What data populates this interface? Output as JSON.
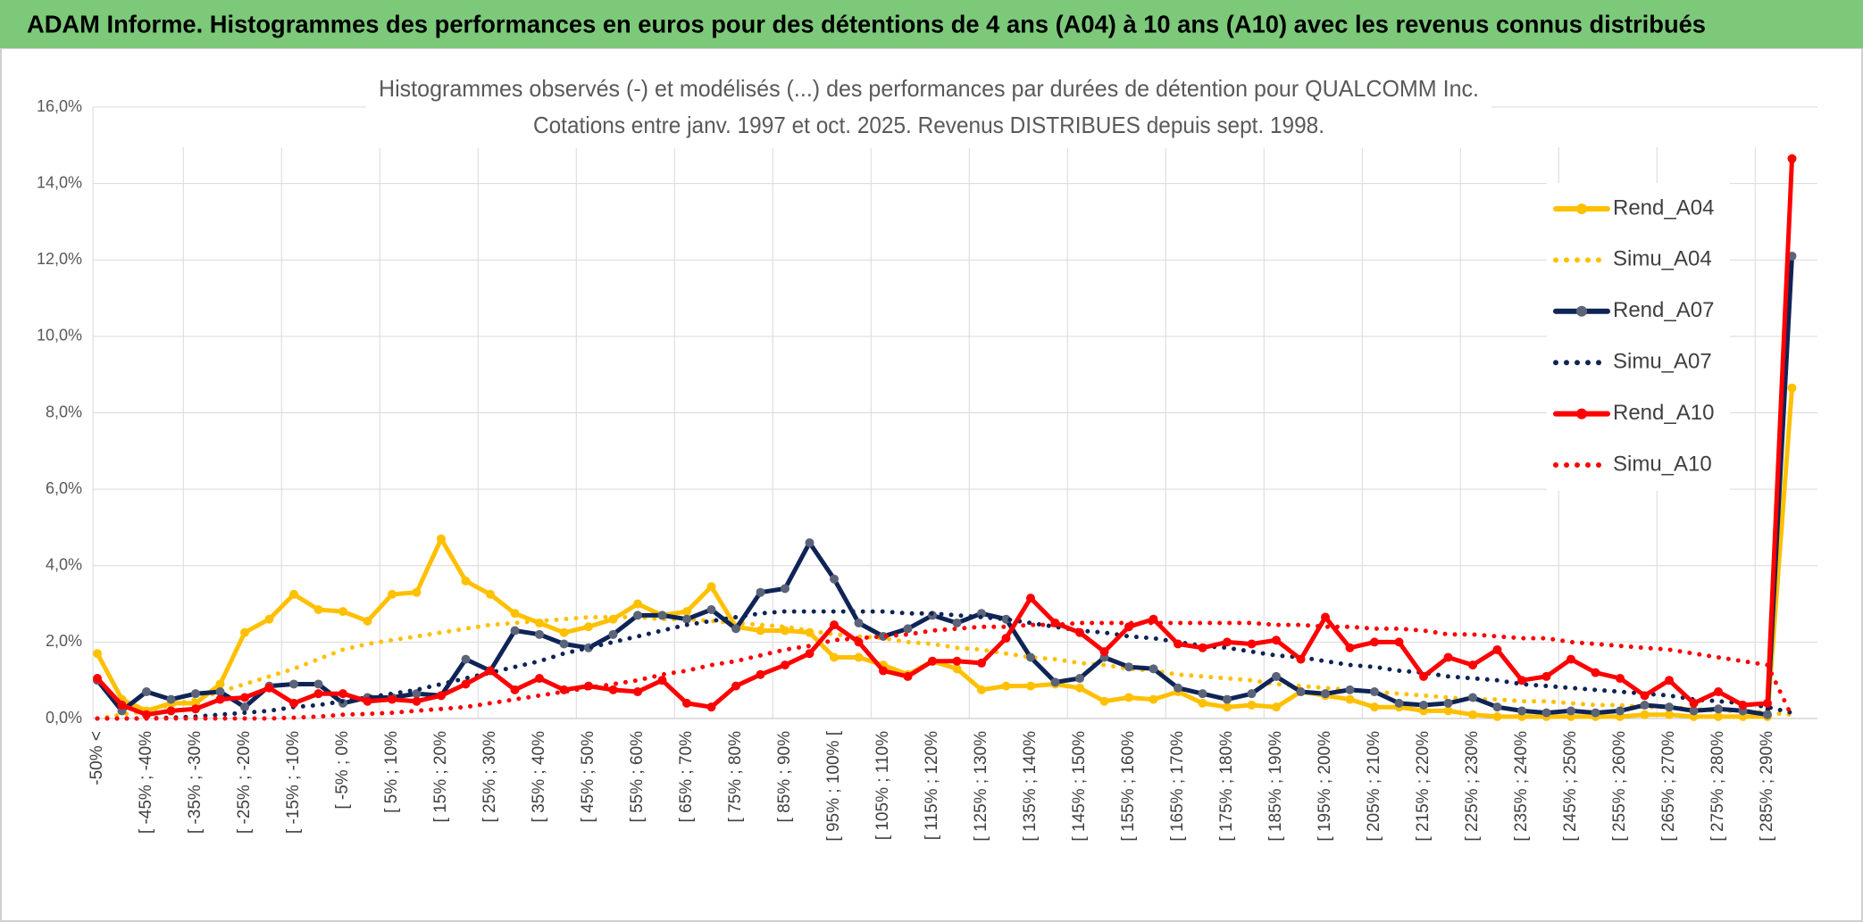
{
  "header": {
    "title": "ADAM Informe. Histogrammes des performances en euros pour des détentions de 4 ans (A04) à 10 ans (A10) avec les revenus connus distribués"
  },
  "chart_data": {
    "type": "line",
    "title": "Histogrammes observés (-) et modélisés (...) des performances par durées de détention pour QUALCOMM Inc.",
    "subtitle": "Cotations entre janv. 1997 et oct. 2025. Revenus DISTRIBUES depuis sept. 1998.",
    "categories": [
      "-50% <",
      null,
      "[ -45% ; -40%",
      null,
      "[ -35% ; -30%",
      null,
      "[ -25% ; -20%",
      null,
      "[ -15% ; -10%",
      null,
      "[ -5% ; 0%",
      null,
      "[ 5% ; 10%",
      null,
      "[ 15% ; 20%",
      null,
      "[ 25% ; 30%",
      null,
      "[ 35% ; 40%",
      null,
      "[ 45% ; 50%",
      null,
      "[ 55% ; 60%",
      null,
      "[ 65% ; 70%",
      null,
      "[ 75% ; 80%",
      null,
      "[ 85% ; 90%",
      null,
      "[ 95% ; 100% [",
      null,
      "[ 105% ; 110%",
      null,
      "[ 115% ; 120%",
      null,
      "[ 125% ; 130%",
      null,
      "[ 135% ; 140%",
      null,
      "[ 145% ; 150%",
      null,
      "[ 155% ; 160%",
      null,
      "[ 165% ; 170%",
      null,
      "[ 175% ; 180%",
      null,
      "[ 185% ; 190%",
      null,
      "[ 195% ; 200%",
      null,
      "[ 205% ; 210%",
      null,
      "[ 215% ; 220%",
      null,
      "[ 225% ; 230%",
      null,
      "[ 235% ; 240%",
      null,
      "[ 245% ; 250%",
      null,
      "[ 255% ; 260%",
      null,
      "[ 265% ; 270%",
      null,
      "[ 275% ; 280%",
      null,
      "[ 285% ; 290%",
      null
    ],
    "series": [
      {
        "name": "Rend_A04",
        "color": "#ffc000",
        "line_style": "solid",
        "markers": true,
        "values": [
          1.7,
          0.5,
          0.2,
          0.4,
          0.4,
          0.9,
          2.25,
          2.6,
          3.25,
          2.85,
          2.8,
          2.55,
          3.25,
          3.3,
          4.7,
          3.6,
          3.25,
          2.75,
          2.5,
          2.25,
          2.4,
          2.6,
          3.0,
          2.7,
          2.8,
          3.45,
          2.4,
          2.3,
          2.3,
          2.25,
          1.6,
          1.6,
          1.4,
          1.15,
          1.5,
          1.3,
          0.75,
          0.85,
          0.85,
          0.9,
          0.8,
          0.45,
          0.55,
          0.5,
          0.7,
          0.4,
          0.3,
          0.35,
          0.3,
          0.7,
          0.6,
          0.5,
          0.3,
          0.3,
          0.2,
          0.2,
          0.1,
          0.05,
          0.05,
          0.05,
          0.05,
          0.05,
          0.05,
          0.1,
          0.1,
          0.05,
          0.05,
          0.05,
          0.05,
          8.65
        ]
      },
      {
        "name": "Simu_A04",
        "color": "#ffc000",
        "line_style": "dotted",
        "markers": false,
        "values": [
          0,
          0.1,
          0.2,
          0.35,
          0.5,
          0.7,
          0.9,
          1.1,
          1.3,
          1.55,
          1.8,
          1.95,
          2.05,
          2.15,
          2.25,
          2.35,
          2.45,
          2.5,
          2.55,
          2.6,
          2.65,
          2.65,
          2.65,
          2.6,
          2.6,
          2.55,
          2.5,
          2.45,
          2.4,
          2.3,
          2.2,
          2.15,
          2.1,
          2.0,
          1.95,
          1.85,
          1.8,
          1.7,
          1.6,
          1.55,
          1.45,
          1.4,
          1.3,
          1.25,
          1.15,
          1.1,
          1.05,
          1.0,
          0.9,
          0.85,
          0.8,
          0.75,
          0.7,
          0.65,
          0.6,
          0.55,
          0.5,
          0.5,
          0.45,
          0.45,
          0.4,
          0.35,
          0.35,
          0.3,
          0.3,
          0.25,
          0.2,
          0.2,
          0.15,
          0.1
        ]
      },
      {
        "name": "Rend_A07",
        "color": "#0f2456",
        "marker_color": "#5b6478",
        "line_style": "solid",
        "markers": true,
        "values": [
          1.0,
          0.2,
          0.7,
          0.5,
          0.65,
          0.7,
          0.3,
          0.85,
          0.9,
          0.9,
          0.4,
          0.55,
          0.55,
          0.65,
          0.6,
          1.55,
          1.25,
          2.3,
          2.2,
          1.95,
          1.85,
          2.2,
          2.7,
          2.7,
          2.6,
          2.85,
          2.35,
          3.3,
          3.4,
          4.6,
          3.65,
          2.5,
          2.15,
          2.35,
          2.7,
          2.5,
          2.75,
          2.6,
          1.6,
          0.95,
          1.05,
          1.6,
          1.35,
          1.3,
          0.8,
          0.65,
          0.5,
          0.65,
          1.1,
          0.7,
          0.65,
          0.75,
          0.7,
          0.4,
          0.35,
          0.4,
          0.55,
          0.3,
          0.2,
          0.15,
          0.2,
          0.15,
          0.2,
          0.35,
          0.3,
          0.2,
          0.25,
          0.2,
          0.1,
          12.1
        ]
      },
      {
        "name": "Simu_A07",
        "color": "#0f2456",
        "line_style": "dotted",
        "markers": false,
        "values": [
          0,
          0,
          0,
          0.02,
          0.05,
          0.1,
          0.15,
          0.2,
          0.3,
          0.35,
          0.45,
          0.55,
          0.65,
          0.75,
          0.9,
          1.05,
          1.2,
          1.35,
          1.5,
          1.7,
          1.85,
          2.0,
          2.15,
          2.3,
          2.45,
          2.55,
          2.65,
          2.75,
          2.8,
          2.8,
          2.8,
          2.8,
          2.8,
          2.75,
          2.75,
          2.7,
          2.65,
          2.6,
          2.5,
          2.4,
          2.3,
          2.25,
          2.15,
          2.1,
          2.0,
          1.9,
          1.85,
          1.75,
          1.65,
          1.6,
          1.5,
          1.4,
          1.35,
          1.25,
          1.2,
          1.1,
          1.05,
          1.0,
          0.9,
          0.85,
          0.8,
          0.75,
          0.7,
          0.65,
          0.6,
          0.5,
          0.45,
          0.4,
          0.3,
          0.15
        ]
      },
      {
        "name": "Rend_A10",
        "color": "#ff0000",
        "line_style": "solid",
        "markers": true,
        "values": [
          1.05,
          0.35,
          0.1,
          0.2,
          0.25,
          0.5,
          0.55,
          0.8,
          0.4,
          0.65,
          0.65,
          0.45,
          0.5,
          0.45,
          0.6,
          0.9,
          1.25,
          0.75,
          1.05,
          0.75,
          0.85,
          0.75,
          0.7,
          1.0,
          0.4,
          0.3,
          0.85,
          1.15,
          1.4,
          1.7,
          2.45,
          2.0,
          1.25,
          1.1,
          1.5,
          1.5,
          1.45,
          2.1,
          3.15,
          2.5,
          2.25,
          1.75,
          2.4,
          2.6,
          1.95,
          1.85,
          2.0,
          1.95,
          2.05,
          1.55,
          2.65,
          1.85,
          2.0,
          2.0,
          1.1,
          1.6,
          1.4,
          1.8,
          1.0,
          1.1,
          1.55,
          1.2,
          1.05,
          0.6,
          1.0,
          0.4,
          0.7,
          0.35,
          0.4,
          14.65
        ]
      },
      {
        "name": "Simu_A10",
        "color": "#ff0000",
        "line_style": "dotted",
        "markers": false,
        "values": [
          0,
          0,
          0,
          0,
          0,
          0,
          0,
          0,
          0.02,
          0.05,
          0.1,
          0.12,
          0.15,
          0.2,
          0.25,
          0.3,
          0.4,
          0.5,
          0.6,
          0.7,
          0.8,
          0.9,
          1.0,
          1.15,
          1.25,
          1.4,
          1.5,
          1.65,
          1.8,
          1.9,
          2.05,
          2.1,
          2.15,
          2.2,
          2.3,
          2.35,
          2.4,
          2.4,
          2.45,
          2.45,
          2.5,
          2.5,
          2.5,
          2.5,
          2.5,
          2.5,
          2.5,
          2.5,
          2.45,
          2.45,
          2.4,
          2.4,
          2.35,
          2.35,
          2.3,
          2.2,
          2.2,
          2.15,
          2.1,
          2.1,
          2.0,
          1.95,
          1.9,
          1.85,
          1.8,
          1.7,
          1.6,
          1.5,
          1.4,
          0.05
        ]
      }
    ],
    "ylim": [
      0,
      16
    ],
    "yticks": [
      {
        "value": 0,
        "label": "0,0%"
      },
      {
        "value": 2,
        "label": "2,0%"
      },
      {
        "value": 4,
        "label": "4,0%"
      },
      {
        "value": 6,
        "label": "6,0%"
      },
      {
        "value": 8,
        "label": "8,0%"
      },
      {
        "value": 10,
        "label": "10,0%"
      },
      {
        "value": 12,
        "label": "12,0%"
      },
      {
        "value": 14,
        "label": "14,0%"
      },
      {
        "value": 16,
        "label": "16,0%"
      }
    ],
    "grid": true,
    "legend": "right"
  }
}
